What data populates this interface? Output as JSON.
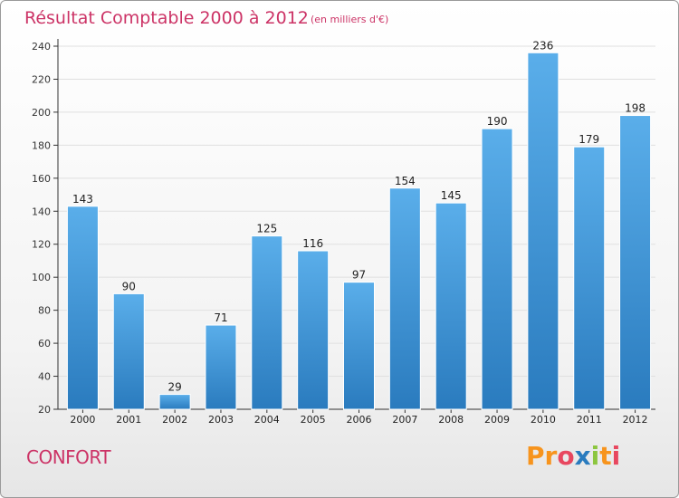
{
  "header": {
    "title": "Résultat Comptable 2000 à 2012",
    "subtitle": "(en milliers d'€)"
  },
  "footer": {
    "commune": "CONFORT",
    "brand": "Proxiti"
  },
  "colors": {
    "title": "#cc3366",
    "bar_light": "#5aaeea",
    "bar_dark": "#2a7bbe",
    "axis": "#333333",
    "grid": "#e0e0e0",
    "logo_letters": [
      "#f7941d",
      "#f7941d",
      "#e8475f",
      "#2a7bbe",
      "#8cc63f",
      "#f7941d",
      "#e8475f"
    ]
  },
  "chart_data": {
    "type": "bar",
    "categories": [
      "2000",
      "2001",
      "2002",
      "2003",
      "2004",
      "2005",
      "2006",
      "2007",
      "2008",
      "2009",
      "2010",
      "2011",
      "2012"
    ],
    "values": [
      143,
      90,
      29,
      71,
      125,
      116,
      97,
      154,
      145,
      190,
      236,
      179,
      198
    ],
    "ylim": [
      20,
      240
    ],
    "yticks": [
      20,
      40,
      60,
      80,
      100,
      120,
      140,
      160,
      180,
      200,
      220,
      240
    ],
    "grid": true,
    "data_labels": true,
    "xlabel": "",
    "ylabel": ""
  }
}
